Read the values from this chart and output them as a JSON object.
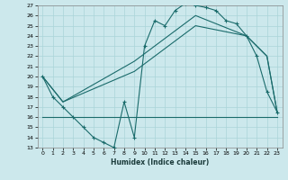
{
  "xlabel": "Humidex (Indice chaleur)",
  "bg_color": "#cce8ec",
  "grid_color": "#aad4d8",
  "line_color": "#1a6b6b",
  "ylim": [
    13,
    27
  ],
  "xlim": [
    -0.5,
    23.5
  ],
  "yticks": [
    13,
    14,
    15,
    16,
    17,
    18,
    19,
    20,
    21,
    22,
    23,
    24,
    25,
    26,
    27
  ],
  "xticks": [
    0,
    1,
    2,
    3,
    4,
    5,
    6,
    7,
    8,
    9,
    10,
    11,
    12,
    13,
    14,
    15,
    16,
    17,
    18,
    19,
    20,
    21,
    22,
    23
  ],
  "line1_x": [
    0,
    1,
    2,
    3,
    4,
    5,
    6,
    7,
    8,
    9,
    10,
    11,
    12,
    13,
    14,
    15,
    16,
    17,
    18,
    19,
    20,
    21,
    22,
    23
  ],
  "line1_y": [
    20,
    18,
    17,
    16,
    15,
    14,
    13.5,
    13,
    17.5,
    14,
    23,
    25.5,
    25,
    26.5,
    27.2,
    27,
    26.8,
    26.5,
    25.5,
    25.2,
    24,
    22,
    18.5,
    16.5
  ],
  "line2_x": [
    0,
    23
  ],
  "line2_y": [
    16,
    16
  ],
  "line3_x": [
    0,
    2,
    9,
    15,
    20,
    22,
    23
  ],
  "line3_y": [
    20,
    17.5,
    21.5,
    26,
    24,
    22,
    16.5
  ],
  "line4_x": [
    0,
    2,
    9,
    15,
    20,
    22,
    23
  ],
  "line4_y": [
    20,
    17.5,
    20.5,
    25,
    24,
    22,
    16.5
  ]
}
